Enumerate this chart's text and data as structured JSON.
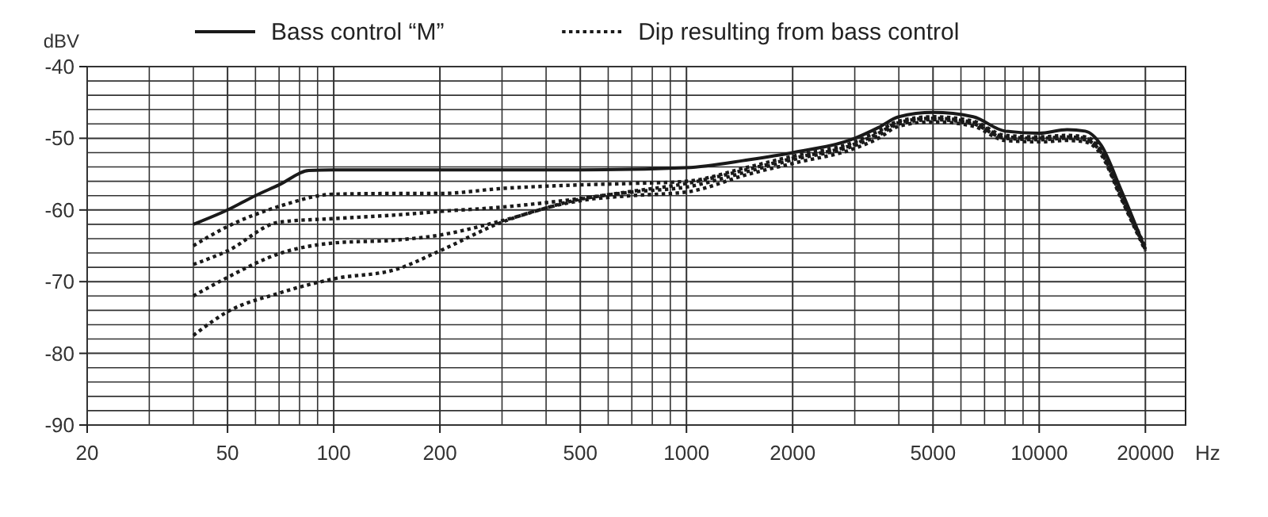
{
  "chart_data": {
    "type": "line",
    "ylabel": "dBV",
    "xlabel": "Hz",
    "log": "x",
    "grid": true,
    "legend": "top",
    "marker": "none",
    "xlim": [
      20,
      26000
    ],
    "ylim": [
      -90,
      -40
    ],
    "xticks": [
      20,
      {
        "value": 30,
        "label": null
      },
      {
        "value": 40,
        "label": null
      },
      50,
      {
        "value": 60,
        "label": null
      },
      {
        "value": 70,
        "label": null
      },
      {
        "value": 80,
        "label": null
      },
      {
        "value": 90,
        "label": null
      },
      100,
      200,
      {
        "value": 300,
        "label": null
      },
      {
        "value": 400,
        "label": null
      },
      500,
      {
        "value": 600,
        "label": null
      },
      {
        "value": 700,
        "label": null
      },
      {
        "value": 800,
        "label": null
      },
      {
        "value": 900,
        "label": null
      },
      1000,
      2000,
      {
        "value": 3000,
        "label": null
      },
      {
        "value": 4000,
        "label": null
      },
      5000,
      {
        "value": 6000,
        "label": null
      },
      {
        "value": 7000,
        "label": null
      },
      {
        "value": 8000,
        "label": null
      },
      {
        "value": 9000,
        "label": null
      },
      10000,
      20000
    ],
    "yticks": [
      -90,
      {
        "value": -88,
        "label": null
      },
      {
        "value": -86,
        "label": null
      },
      {
        "value": -84,
        "label": null
      },
      {
        "value": -82,
        "label": null
      },
      -80,
      {
        "value": -78,
        "label": null
      },
      {
        "value": -76,
        "label": null
      },
      {
        "value": -74,
        "label": null
      },
      {
        "value": -72,
        "label": null
      },
      -70,
      {
        "value": -68,
        "label": null
      },
      {
        "value": -66,
        "label": null
      },
      {
        "value": -64,
        "label": null
      },
      {
        "value": -62,
        "label": null
      },
      -60,
      {
        "value": -58,
        "label": null
      },
      {
        "value": -56,
        "label": null
      },
      {
        "value": -54,
        "label": null
      },
      {
        "value": -52,
        "label": null
      },
      -50,
      {
        "value": -48,
        "label": null
      },
      {
        "value": -46,
        "label": null
      },
      {
        "value": -44,
        "label": null
      },
      {
        "value": -42,
        "label": null
      },
      -40
    ],
    "series": [
      {
        "name": "Bass control “M”",
        "color": "#1a1a1a",
        "line_style": "solid",
        "x": [
          40,
          50,
          60,
          70,
          85,
          100,
          200,
          500,
          1000,
          1500,
          2000,
          3000,
          3500,
          4000,
          5000,
          6500,
          8000,
          10000,
          12000,
          13500,
          15000,
          17000,
          20000
        ],
        "values": [
          -62,
          -60,
          -58,
          -56.5,
          -54.5,
          -54.4,
          -54.4,
          -54.4,
          -54.1,
          -53,
          -52,
          -50,
          -48.5,
          -47,
          -46.4,
          -47,
          -49,
          -49.3,
          -48.8,
          -49,
          -51,
          -57,
          -65.5
        ]
      },
      {
        "name": "Dip resulting from bass control",
        "color": "#1a1a1a",
        "line_style": "dotted",
        "x": [
          40,
          50,
          70,
          100,
          150,
          200,
          300,
          500,
          700,
          1000,
          1500,
          2000,
          3000,
          3500,
          4000,
          5000,
          6500,
          8000,
          10000,
          12000,
          13500,
          15000,
          17000,
          20000
        ],
        "values": [
          -65,
          -62.3,
          -59.5,
          -57.8,
          -57.7,
          -57.7,
          -57,
          -56.5,
          -56.3,
          -56,
          -54,
          -52.5,
          -50.5,
          -49,
          -47.6,
          -47,
          -47.6,
          -49.6,
          -49.8,
          -49.6,
          -49.8,
          -51.6,
          -57.6,
          -65.2
        ]
      },
      {
        "color": "#1a1a1a",
        "line_style": "dotted",
        "x": [
          40,
          50,
          70,
          100,
          150,
          200,
          300,
          500,
          700,
          1000,
          1500,
          2000,
          3000,
          3500,
          4000,
          5000,
          6500,
          8000,
          10000,
          12000,
          13500,
          15000,
          17000,
          20000
        ],
        "values": [
          -67.6,
          -65.7,
          -61.7,
          -61.2,
          -60.7,
          -60.2,
          -59.6,
          -58.4,
          -57.4,
          -56.3,
          -54.3,
          -52.8,
          -50.8,
          -49.3,
          -47.8,
          -47.2,
          -47.8,
          -49.8,
          -50,
          -49.8,
          -50,
          -51.8,
          -57.8,
          -65.4
        ]
      },
      {
        "color": "#1a1a1a",
        "line_style": "dotted",
        "x": [
          40,
          50,
          70,
          100,
          150,
          200,
          300,
          500,
          700,
          1000,
          1500,
          2000,
          3000,
          3500,
          4000,
          5000,
          6500,
          8000,
          10000,
          12000,
          13500,
          15000,
          17000,
          20000
        ],
        "values": [
          -72,
          -69.4,
          -66.1,
          -64.6,
          -64.2,
          -63.5,
          -61.5,
          -58.5,
          -57.5,
          -56.8,
          -54.6,
          -53,
          -51,
          -49.6,
          -48,
          -47.4,
          -48,
          -50,
          -50.2,
          -50,
          -50.2,
          -52,
          -58,
          -65.5
        ]
      },
      {
        "color": "#1a1a1a",
        "line_style": "dotted",
        "x": [
          40,
          50,
          70,
          100,
          150,
          200,
          300,
          500,
          700,
          1000,
          1500,
          2000,
          3000,
          3500,
          4000,
          5000,
          6500,
          8000,
          10000,
          12000,
          13500,
          15000,
          17000,
          20000
        ],
        "values": [
          -77.5,
          -74.2,
          -71.6,
          -69.6,
          -68.3,
          -65.7,
          -61.7,
          -58.7,
          -58,
          -57.5,
          -55,
          -53.5,
          -51.4,
          -50,
          -48.3,
          -47.7,
          -48.3,
          -50.3,
          -50.5,
          -50.3,
          -50.5,
          -52.3,
          -58.2,
          -65.7
        ]
      }
    ]
  }
}
